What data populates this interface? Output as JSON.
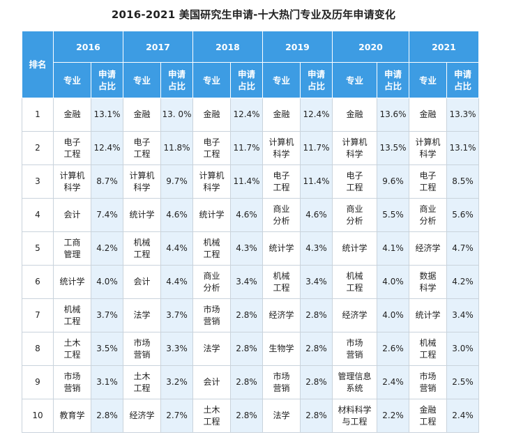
{
  "title": "2016-2021 美国研究生申请-十大热门专业及历年申请变化",
  "header": {
    "rank_label": "排名",
    "major_label": "专业",
    "share_label": "申请\n占比",
    "years": [
      "2016",
      "2017",
      "2018",
      "2019",
      "2020",
      "2021"
    ]
  },
  "rows": [
    {
      "rank": "1",
      "cells": [
        {
          "major": "金融",
          "share": "13.1%"
        },
        {
          "major": "金融",
          "share": "13. 0%"
        },
        {
          "major": "金融",
          "share": "12.4%"
        },
        {
          "major": "金融",
          "share": "12.4%"
        },
        {
          "major": "金融",
          "share": "13.6%"
        },
        {
          "major": "金融",
          "share": "13.3%"
        }
      ]
    },
    {
      "rank": "2",
      "cells": [
        {
          "major": "电子\n工程",
          "share": "12.4%"
        },
        {
          "major": "电子\n工程",
          "share": "11.8%"
        },
        {
          "major": "电子\n工程",
          "share": "11.7%"
        },
        {
          "major": "计算机\n科学",
          "share": "11.7%"
        },
        {
          "major": "计算机\n科学",
          "share": "13.5%"
        },
        {
          "major": "计算机\n科学",
          "share": "13.1%"
        }
      ]
    },
    {
      "rank": "3",
      "cells": [
        {
          "major": "计算机\n科学",
          "share": "8.7%"
        },
        {
          "major": "计算机\n科学",
          "share": "9.7%"
        },
        {
          "major": "计算机\n科学",
          "share": "11.4%"
        },
        {
          "major": "电子\n工程",
          "share": "11.4%"
        },
        {
          "major": "电子\n工程",
          "share": "9.6%"
        },
        {
          "major": "电子\n工程",
          "share": "8.5%"
        }
      ]
    },
    {
      "rank": "4",
      "cells": [
        {
          "major": "会计",
          "share": "7.4%"
        },
        {
          "major": "统计学",
          "share": "4.6%"
        },
        {
          "major": "统计学",
          "share": "4.6%"
        },
        {
          "major": "商业\n分析",
          "share": "4.6%"
        },
        {
          "major": "商业\n分析",
          "share": "5.5%"
        },
        {
          "major": "商业\n分析",
          "share": "5.6%"
        }
      ]
    },
    {
      "rank": "5",
      "cells": [
        {
          "major": "工商\n管理",
          "share": "4.2%"
        },
        {
          "major": "机械\n工程",
          "share": "4.4%"
        },
        {
          "major": "机械\n工程",
          "share": "4.3%"
        },
        {
          "major": "统计学",
          "share": "4.3%"
        },
        {
          "major": "统计学",
          "share": "4.1%"
        },
        {
          "major": "经济学",
          "share": "4.7%"
        }
      ]
    },
    {
      "rank": "6",
      "cells": [
        {
          "major": "统计学",
          "share": "4.0%"
        },
        {
          "major": "会计",
          "share": "4.4%"
        },
        {
          "major": "商业\n分析",
          "share": "3.4%"
        },
        {
          "major": "机械\n工程",
          "share": "3.4%"
        },
        {
          "major": "机械\n工程",
          "share": "4.0%"
        },
        {
          "major": "数据\n科学",
          "share": "4.2%"
        }
      ]
    },
    {
      "rank": "7",
      "cells": [
        {
          "major": "机械\n工程",
          "share": "3.7%"
        },
        {
          "major": "法学",
          "share": "3.7%"
        },
        {
          "major": "市场\n营销",
          "share": "2.8%"
        },
        {
          "major": "经济学",
          "share": "2.8%"
        },
        {
          "major": "经济学",
          "share": "4.0%"
        },
        {
          "major": "统计学",
          "share": "3.4%"
        }
      ]
    },
    {
      "rank": "8",
      "cells": [
        {
          "major": "土木\n工程",
          "share": "3.5%"
        },
        {
          "major": "市场\n营销",
          "share": "3.3%"
        },
        {
          "major": "法学",
          "share": "2.8%"
        },
        {
          "major": "生物学",
          "share": "2.8%"
        },
        {
          "major": "市场\n营销",
          "share": "2.6%"
        },
        {
          "major": "机械\n工程",
          "share": "3.0%"
        }
      ]
    },
    {
      "rank": "9",
      "cells": [
        {
          "major": "市场\n营销",
          "share": "3.1%"
        },
        {
          "major": "土木\n工程",
          "share": "3.2%"
        },
        {
          "major": "会计",
          "share": "2.8%"
        },
        {
          "major": "市场\n营销",
          "share": "2.8%"
        },
        {
          "major": "管理信息\n系统",
          "share": "2.4%"
        },
        {
          "major": "市场\n营销",
          "share": "2.5%"
        }
      ]
    },
    {
      "rank": "10",
      "cells": [
        {
          "major": "教育学",
          "share": "2.8%"
        },
        {
          "major": "经济学",
          "share": "2.7%"
        },
        {
          "major": "土木\n工程",
          "share": "2.8%"
        },
        {
          "major": "法学",
          "share": "2.8%"
        },
        {
          "major": "材料科学\n与工程",
          "share": "2.2%"
        },
        {
          "major": "金融\n工程",
          "share": "2.4%"
        }
      ]
    }
  ]
}
